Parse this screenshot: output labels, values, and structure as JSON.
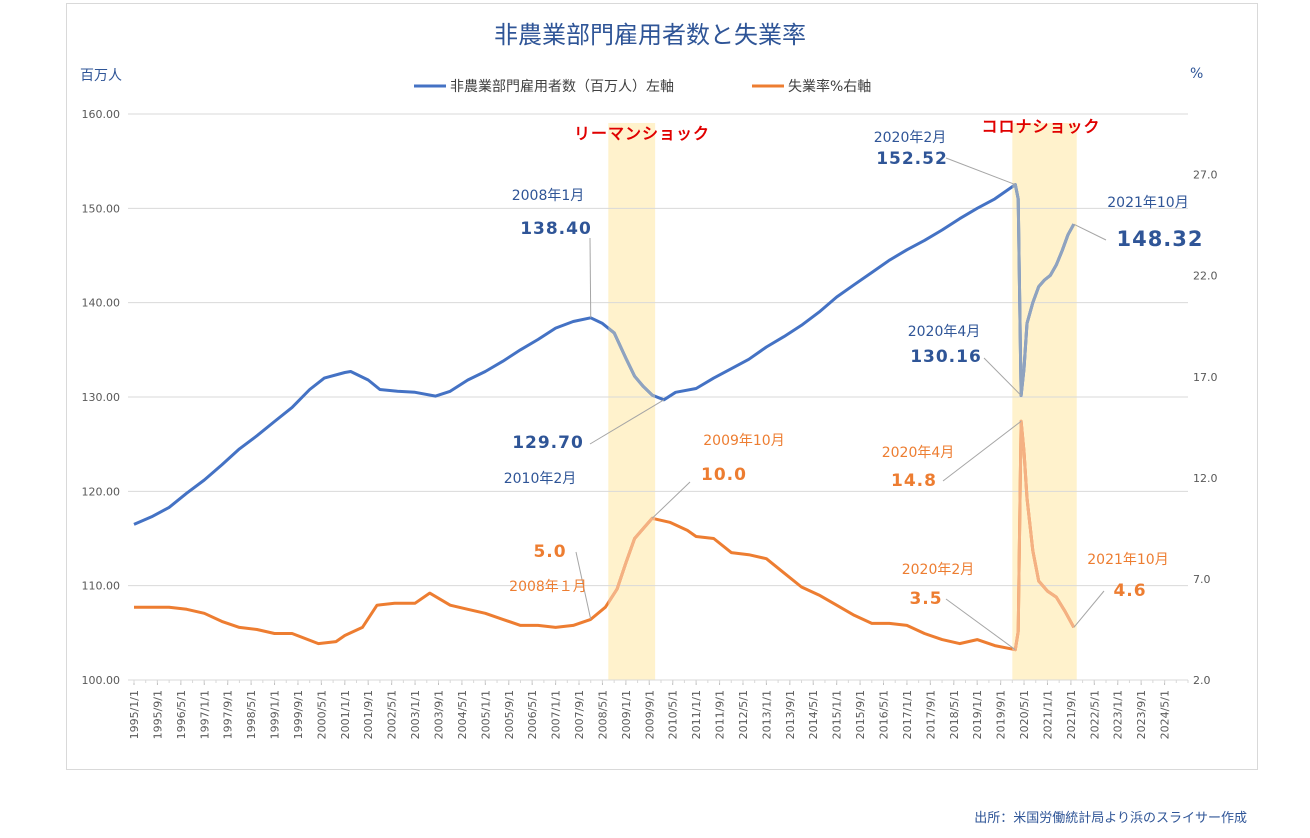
{
  "chart_data": {
    "type": "line",
    "title": "非農業部門雇用者数と失業率",
    "left_axis_unit": "百万人",
    "right_axis_unit": "%",
    "y_left": {
      "lim": [
        100,
        160
      ],
      "ticks": [
        "100.00",
        "110.00",
        "120.00",
        "130.00",
        "140.00",
        "150.00",
        "160.00"
      ]
    },
    "y_right": {
      "lim": [
        2,
        30
      ],
      "ticks": [
        "2.0",
        "7.0",
        "12.0",
        "17.0",
        "22.0",
        "27.0"
      ]
    },
    "x": {
      "lim": [
        "1995/1",
        "2024/12"
      ],
      "ticks": [
        "1995/1/1",
        "1995/9/1",
        "1996/5/1",
        "1997/1/1",
        "1997/9/1",
        "1998/5/1",
        "1999/1/1",
        "1999/9/1",
        "2000/5/1",
        "2001/1/1",
        "2001/9/1",
        "2002/5/1",
        "2003/1/1",
        "2003/9/1",
        "2004/5/1",
        "2005/1/1",
        "2005/9/1",
        "2006/5/1",
        "2007/1/1",
        "2007/9/1",
        "2008/5/1",
        "2009/1/1",
        "2009/9/1",
        "2010/5/1",
        "2011/1/1",
        "2011/9/1",
        "2012/5/1",
        "2013/1/1",
        "2013/9/1",
        "2014/5/1",
        "2015/1/1",
        "2015/9/1",
        "2016/5/1",
        "2017/1/1",
        "2017/9/1",
        "2018/5/1",
        "2019/1/1",
        "2019/9/1",
        "2020/5/1",
        "2021/1/1",
        "2021/9/1",
        "2022/5/1",
        "2023/1/1",
        "2023/9/1",
        "2024/5/1"
      ]
    },
    "grid": "horizontal",
    "legend_placement": "top",
    "series": [
      {
        "name": "非農業部門雇用者数（百万人）左軸",
        "axis": "left",
        "color": "#4472c4",
        "shock_color": "#8fa3bf",
        "points": [
          [
            "1995/1",
            116.5
          ],
          [
            "1995/7",
            117.3
          ],
          [
            "1996/1",
            118.3
          ],
          [
            "1996/7",
            119.8
          ],
          [
            "1997/1",
            121.2
          ],
          [
            "1997/7",
            122.8
          ],
          [
            "1998/1",
            124.5
          ],
          [
            "1998/7",
            125.9
          ],
          [
            "1999/1",
            127.4
          ],
          [
            "1999/7",
            128.9
          ],
          [
            "2000/1",
            130.8
          ],
          [
            "2000/6",
            132.0
          ],
          [
            "2001/1",
            132.6
          ],
          [
            "2001/3",
            132.7
          ],
          [
            "2001/9",
            131.8
          ],
          [
            "2002/1",
            130.8
          ],
          [
            "2002/7",
            130.6
          ],
          [
            "2003/1",
            130.5
          ],
          [
            "2003/8",
            130.1
          ],
          [
            "2004/1",
            130.6
          ],
          [
            "2004/7",
            131.8
          ],
          [
            "2005/1",
            132.7
          ],
          [
            "2005/7",
            133.8
          ],
          [
            "2006/1",
            135.0
          ],
          [
            "2006/7",
            136.1
          ],
          [
            "2007/1",
            137.3
          ],
          [
            "2007/7",
            138.0
          ],
          [
            "2008/1",
            138.4
          ],
          [
            "2008/5",
            137.8
          ],
          [
            "2008/9",
            136.8
          ],
          [
            "2009/1",
            134.1
          ],
          [
            "2009/4",
            132.2
          ],
          [
            "2009/7",
            131.1
          ],
          [
            "2009/10",
            130.2
          ],
          [
            "2010/2",
            129.7
          ],
          [
            "2010/6",
            130.5
          ],
          [
            "2011/1",
            130.9
          ],
          [
            "2011/7",
            132.0
          ],
          [
            "2012/1",
            133.0
          ],
          [
            "2012/7",
            134.0
          ],
          [
            "2013/1",
            135.3
          ],
          [
            "2013/7",
            136.4
          ],
          [
            "2014/1",
            137.6
          ],
          [
            "2014/7",
            139.0
          ],
          [
            "2015/1",
            140.6
          ],
          [
            "2015/7",
            141.9
          ],
          [
            "2016/1",
            143.2
          ],
          [
            "2016/7",
            144.5
          ],
          [
            "2017/1",
            145.6
          ],
          [
            "2017/7",
            146.6
          ],
          [
            "2018/1",
            147.7
          ],
          [
            "2018/7",
            148.9
          ],
          [
            "2019/1",
            150.0
          ],
          [
            "2019/7",
            151.0
          ],
          [
            "2020/2",
            152.52
          ],
          [
            "2020/3",
            151.0
          ],
          [
            "2020/4",
            130.16
          ],
          [
            "2020/5",
            133.0
          ],
          [
            "2020/6",
            137.8
          ],
          [
            "2020/8",
            140.0
          ],
          [
            "2020/10",
            141.7
          ],
          [
            "2020/12",
            142.4
          ],
          [
            "2021/2",
            142.9
          ],
          [
            "2021/4",
            144.0
          ],
          [
            "2021/6",
            145.5
          ],
          [
            "2021/8",
            147.2
          ],
          [
            "2021/10",
            148.32
          ]
        ]
      },
      {
        "name": "失業率%右軸",
        "axis": "right",
        "color": "#ed7d31",
        "shock_color": "#f4b183",
        "points": [
          [
            "1995/1",
            5.6
          ],
          [
            "1995/6",
            5.6
          ],
          [
            "1996/1",
            5.6
          ],
          [
            "1996/7",
            5.5
          ],
          [
            "1997/1",
            5.3
          ],
          [
            "1997/7",
            4.9
          ],
          [
            "1998/1",
            4.6
          ],
          [
            "1998/7",
            4.5
          ],
          [
            "1999/1",
            4.3
          ],
          [
            "1999/7",
            4.3
          ],
          [
            "2000/4",
            3.8
          ],
          [
            "2000/10",
            3.9
          ],
          [
            "2001/1",
            4.2
          ],
          [
            "2001/7",
            4.6
          ],
          [
            "2001/12",
            5.7
          ],
          [
            "2002/6",
            5.8
          ],
          [
            "2003/1",
            5.8
          ],
          [
            "2003/6",
            6.3
          ],
          [
            "2004/1",
            5.7
          ],
          [
            "2004/7",
            5.5
          ],
          [
            "2005/1",
            5.3
          ],
          [
            "2005/7",
            5.0
          ],
          [
            "2006/1",
            4.7
          ],
          [
            "2006/7",
            4.7
          ],
          [
            "2007/1",
            4.6
          ],
          [
            "2007/7",
            4.7
          ],
          [
            "2008/1",
            5.0
          ],
          [
            "2008/6",
            5.6
          ],
          [
            "2008/10",
            6.5
          ],
          [
            "2009/1",
            7.8
          ],
          [
            "2009/4",
            9.0
          ],
          [
            "2009/7",
            9.5
          ],
          [
            "2009/10",
            10.0
          ],
          [
            "2010/4",
            9.8
          ],
          [
            "2010/10",
            9.4
          ],
          [
            "2011/1",
            9.1
          ],
          [
            "2011/7",
            9.0
          ],
          [
            "2012/1",
            8.3
          ],
          [
            "2012/7",
            8.2
          ],
          [
            "2013/1",
            8.0
          ],
          [
            "2013/7",
            7.3
          ],
          [
            "2014/1",
            6.6
          ],
          [
            "2014/7",
            6.2
          ],
          [
            "2015/1",
            5.7
          ],
          [
            "2015/7",
            5.2
          ],
          [
            "2016/1",
            4.8
          ],
          [
            "2016/7",
            4.8
          ],
          [
            "2017/1",
            4.7
          ],
          [
            "2017/7",
            4.3
          ],
          [
            "2018/1",
            4.0
          ],
          [
            "2018/7",
            3.8
          ],
          [
            "2019/1",
            4.0
          ],
          [
            "2019/7",
            3.7
          ],
          [
            "2020/2",
            3.5
          ],
          [
            "2020/3",
            4.4
          ],
          [
            "2020/4",
            14.8
          ],
          [
            "2020/5",
            13.3
          ],
          [
            "2020/6",
            11.0
          ],
          [
            "2020/8",
            8.4
          ],
          [
            "2020/10",
            6.9
          ],
          [
            "2021/1",
            6.4
          ],
          [
            "2021/4",
            6.1
          ],
          [
            "2021/7",
            5.4
          ],
          [
            "2021/10",
            4.6
          ]
        ]
      }
    ],
    "shaded_periods": [
      {
        "label": "リーマンショック",
        "from": "2008/7",
        "to": "2009/11"
      },
      {
        "label": "コロナショック",
        "from": "2020/1",
        "to": "2021/11"
      }
    ],
    "annotations": [
      {
        "date_label": "2008年1月",
        "value_label": "138.40",
        "at": [
          "2008/1",
          138.4
        ],
        "series": 0
      },
      {
        "date_label": "2010年2月",
        "value_label": "129.70",
        "at": [
          "2010/2",
          129.7
        ],
        "series": 0
      },
      {
        "date_label": "2020年2月",
        "value_label": "152.52",
        "at": [
          "2020/2",
          152.52
        ],
        "series": 0
      },
      {
        "date_label": "2021年10月",
        "value_label": "148.32",
        "at": [
          "2021/10",
          148.32
        ],
        "series": 0
      },
      {
        "date_label": "2020年4月",
        "value_label": "130.16",
        "at": [
          "2020/4",
          130.16
        ],
        "series": 0
      },
      {
        "date_label": "2009年10月",
        "value_label": "10.0",
        "at": [
          "2009/10",
          10.0
        ],
        "series": 1
      },
      {
        "date_label": "2008年１月",
        "value_label": "5.0",
        "at": [
          "2008/1",
          5.0
        ],
        "series": 1
      },
      {
        "date_label": "2020年4月",
        "value_label": "14.8",
        "at": [
          "2020/4",
          14.8
        ],
        "series": 1
      },
      {
        "date_label": "2020年2月",
        "value_label": "3.5",
        "at": [
          "2020/2",
          3.5
        ],
        "series": 1
      },
      {
        "date_label": "2021年10月",
        "value_label": "4.6",
        "at": [
          "2021/10",
          4.6
        ],
        "series": 1
      }
    ]
  },
  "source": "出所：米国労働統計局より浜のスライサー作成"
}
